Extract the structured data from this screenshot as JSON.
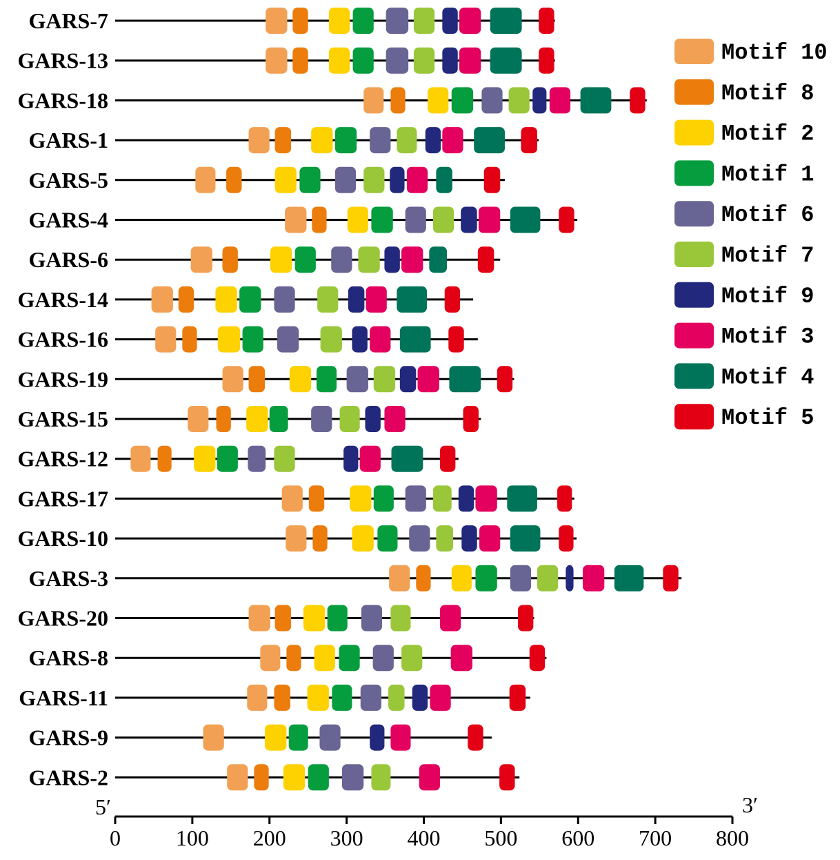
{
  "chart_data": {
    "type": "motif-diagram",
    "xlabel_left": "5′",
    "xlabel_right": "3′",
    "xlim": [
      0,
      800
    ],
    "xticks": [
      0,
      100,
      200,
      300,
      400,
      500,
      600,
      700,
      800
    ],
    "xtick_labels": [
      "0",
      "100",
      "200",
      "300",
      "400",
      "500",
      "600",
      "700",
      "800"
    ],
    "legend_position": "top-right",
    "legend": [
      {
        "motif": "M10",
        "label": "Motif 10",
        "color": "#F2A154"
      },
      {
        "motif": "M8",
        "label": "Motif 8",
        "color": "#EC7C0C"
      },
      {
        "motif": "M2",
        "label": "Motif 2",
        "color": "#FDD200"
      },
      {
        "motif": "M1",
        "label": "Motif 1",
        "color": "#069D3E"
      },
      {
        "motif": "M6",
        "label": "Motif 6",
        "color": "#686594"
      },
      {
        "motif": "M7",
        "label": "Motif 7",
        "color": "#9AC73A"
      },
      {
        "motif": "M9",
        "label": "Motif 9",
        "color": "#22287B"
      },
      {
        "motif": "M3",
        "label": "Motif 3",
        "color": "#E3005F"
      },
      {
        "motif": "M4",
        "label": "Motif 4",
        "color": "#007458"
      },
      {
        "motif": "M5",
        "label": "Motif 5",
        "color": "#E30015"
      }
    ],
    "sequences": [
      {
        "name": "GARS-7",
        "length": 570,
        "motifs": [
          [
            "M10",
            195,
            223
          ],
          [
            "M8",
            230,
            250
          ],
          [
            "M2",
            277,
            304
          ],
          [
            "M1",
            308,
            335
          ],
          [
            "M6",
            351,
            380
          ],
          [
            "M7",
            387,
            414
          ],
          [
            "M9",
            424,
            444
          ],
          [
            "M3",
            446,
            474
          ],
          [
            "M4",
            486,
            527
          ],
          [
            "M5",
            549,
            569
          ]
        ]
      },
      {
        "name": "GARS-13",
        "length": 570,
        "motifs": [
          [
            "M10",
            195,
            223
          ],
          [
            "M8",
            230,
            250
          ],
          [
            "M2",
            277,
            304
          ],
          [
            "M1",
            308,
            335
          ],
          [
            "M6",
            351,
            380
          ],
          [
            "M7",
            387,
            414
          ],
          [
            "M9",
            424,
            444
          ],
          [
            "M3",
            446,
            474
          ],
          [
            "M4",
            486,
            527
          ],
          [
            "M5",
            549,
            569
          ]
        ]
      },
      {
        "name": "GARS-18",
        "length": 689,
        "motifs": [
          [
            "M10",
            322,
            348
          ],
          [
            "M8",
            357,
            376
          ],
          [
            "M2",
            405,
            432
          ],
          [
            "M1",
            436,
            464
          ],
          [
            "M6",
            475,
            502
          ],
          [
            "M7",
            510,
            537
          ],
          [
            "M9",
            541,
            559
          ],
          [
            "M3",
            563,
            590
          ],
          [
            "M4",
            603,
            643
          ],
          [
            "M5",
            667,
            687
          ]
        ]
      },
      {
        "name": "GARS-1",
        "length": 549,
        "motifs": [
          [
            "M10",
            173,
            200
          ],
          [
            "M8",
            207,
            228
          ],
          [
            "M2",
            254,
            282
          ],
          [
            "M1",
            285,
            313
          ],
          [
            "M6",
            330,
            357
          ],
          [
            "M7",
            365,
            391
          ],
          [
            "M9",
            402,
            422
          ],
          [
            "M3",
            424,
            451
          ],
          [
            "M4",
            465,
            505
          ],
          [
            "M5",
            526,
            547
          ]
        ]
      },
      {
        "name": "GARS-5",
        "length": 505,
        "motifs": [
          [
            "M10",
            104,
            130
          ],
          [
            "M8",
            144,
            164
          ],
          [
            "M2",
            207,
            235
          ],
          [
            "M1",
            239,
            266
          ],
          [
            "M6",
            285,
            312
          ],
          [
            "M7",
            322,
            349
          ],
          [
            "M9",
            356,
            375
          ],
          [
            "M3",
            378,
            405
          ],
          [
            "M4",
            416,
            437
          ],
          [
            "M5",
            478,
            499
          ]
        ]
      },
      {
        "name": "GARS-4",
        "length": 599,
        "motifs": [
          [
            "M10",
            220,
            248
          ],
          [
            "M8",
            255,
            274
          ],
          [
            "M2",
            301,
            328
          ],
          [
            "M1",
            332,
            360
          ],
          [
            "M6",
            376,
            403
          ],
          [
            "M7",
            412,
            439
          ],
          [
            "M9",
            448,
            469
          ],
          [
            "M3",
            471,
            499
          ],
          [
            "M4",
            512,
            551
          ],
          [
            "M5",
            575,
            595
          ]
        ]
      },
      {
        "name": "GARS-6",
        "length": 499,
        "motifs": [
          [
            "M10",
            98,
            126
          ],
          [
            "M8",
            139,
            159
          ],
          [
            "M2",
            201,
            229
          ],
          [
            "M1",
            233,
            260
          ],
          [
            "M6",
            280,
            307
          ],
          [
            "M7",
            315,
            343
          ],
          [
            "M9",
            349,
            369
          ],
          [
            "M3",
            371,
            399
          ],
          [
            "M4",
            407,
            430
          ],
          [
            "M5",
            470,
            491
          ]
        ]
      },
      {
        "name": "GARS-14",
        "length": 464,
        "motifs": [
          [
            "M10",
            47,
            75
          ],
          [
            "M8",
            82,
            102
          ],
          [
            "M2",
            130,
            158
          ],
          [
            "M1",
            161,
            189
          ],
          [
            "M6",
            206,
            233
          ],
          [
            "M7",
            262,
            289
          ],
          [
            "M9",
            302,
            323
          ],
          [
            "M3",
            325,
            352
          ],
          [
            "M4",
            365,
            404
          ],
          [
            "M5",
            427,
            447
          ]
        ]
      },
      {
        "name": "GARS-16",
        "length": 470,
        "motifs": [
          [
            "M10",
            52,
            79
          ],
          [
            "M8",
            87,
            106
          ],
          [
            "M2",
            133,
            162
          ],
          [
            "M1",
            165,
            192
          ],
          [
            "M6",
            210,
            238
          ],
          [
            "M7",
            266,
            294
          ],
          [
            "M9",
            307,
            327
          ],
          [
            "M3",
            330,
            357
          ],
          [
            "M4",
            369,
            409
          ],
          [
            "M5",
            432,
            452
          ]
        ]
      },
      {
        "name": "GARS-19",
        "length": 517,
        "motifs": [
          [
            "M10",
            139,
            166
          ],
          [
            "M8",
            173,
            194
          ],
          [
            "M2",
            226,
            254
          ],
          [
            "M1",
            261,
            287
          ],
          [
            "M6",
            300,
            328
          ],
          [
            "M7",
            335,
            363
          ],
          [
            "M9",
            369,
            390
          ],
          [
            "M3",
            392,
            420
          ],
          [
            "M4",
            433,
            474
          ],
          [
            "M5",
            495,
            515
          ]
        ]
      },
      {
        "name": "GARS-15",
        "length": 474,
        "motifs": [
          [
            "M10",
            94,
            121
          ],
          [
            "M8",
            131,
            150
          ],
          [
            "M2",
            170,
            198
          ],
          [
            "M1",
            200,
            224
          ],
          [
            "M6",
            254,
            281
          ],
          [
            "M7",
            291,
            317
          ],
          [
            "M9",
            324,
            344
          ],
          [
            "M3",
            349,
            376
          ],
          [
            "M5",
            451,
            471
          ]
        ]
      },
      {
        "name": "GARS-12",
        "length": 445,
        "motifs": [
          [
            "M10",
            20,
            46
          ],
          [
            "M8",
            55,
            73
          ],
          [
            "M2",
            102,
            130
          ],
          [
            "M1",
            132,
            159
          ],
          [
            "M6",
            172,
            195
          ],
          [
            "M7",
            206,
            233
          ],
          [
            "M9",
            296,
            315
          ],
          [
            "M3",
            317,
            344
          ],
          [
            "M4",
            358,
            399
          ],
          [
            "M5",
            421,
            441
          ]
        ]
      },
      {
        "name": "GARS-17",
        "length": 595,
        "motifs": [
          [
            "M10",
            216,
            243
          ],
          [
            "M8",
            251,
            271
          ],
          [
            "M2",
            304,
            332
          ],
          [
            "M1",
            335,
            361
          ],
          [
            "M6",
            376,
            403
          ],
          [
            "M7",
            412,
            436
          ],
          [
            "M9",
            445,
            465
          ],
          [
            "M3",
            467,
            495
          ],
          [
            "M4",
            508,
            547
          ],
          [
            "M5",
            573,
            592
          ]
        ]
      },
      {
        "name": "GARS-10",
        "length": 598,
        "motifs": [
          [
            "M10",
            221,
            248
          ],
          [
            "M8",
            256,
            275
          ],
          [
            "M2",
            307,
            335
          ],
          [
            "M1",
            340,
            366
          ],
          [
            "M6",
            381,
            408
          ],
          [
            "M7",
            416,
            438
          ],
          [
            "M9",
            449,
            469
          ],
          [
            "M3",
            472,
            499
          ],
          [
            "M4",
            512,
            551
          ],
          [
            "M5",
            575,
            594
          ]
        ]
      },
      {
        "name": "GARS-3",
        "length": 734,
        "motifs": [
          [
            "M10",
            355,
            382
          ],
          [
            "M8",
            390,
            409
          ],
          [
            "M2",
            436,
            462
          ],
          [
            "M1",
            467,
            495
          ],
          [
            "M6",
            512,
            539
          ],
          [
            "M7",
            547,
            574
          ],
          [
            "M9",
            584,
            594
          ],
          [
            "M3",
            606,
            634
          ],
          [
            "M4",
            647,
            685
          ],
          [
            "M5",
            710,
            730
          ]
        ]
      },
      {
        "name": "GARS-20",
        "length": 543,
        "motifs": [
          [
            "M10",
            173,
            201
          ],
          [
            "M8",
            207,
            228
          ],
          [
            "M2",
            244,
            272
          ],
          [
            "M1",
            275,
            301
          ],
          [
            "M6",
            319,
            346
          ],
          [
            "M7",
            357,
            383
          ],
          [
            "M3",
            421,
            448
          ],
          [
            "M5",
            522,
            542
          ]
        ]
      },
      {
        "name": "GARS-8",
        "length": 559,
        "motifs": [
          [
            "M10",
            188,
            214
          ],
          [
            "M8",
            222,
            241
          ],
          [
            "M2",
            258,
            285
          ],
          [
            "M1",
            290,
            317
          ],
          [
            "M6",
            334,
            361
          ],
          [
            "M7",
            371,
            398
          ],
          [
            "M3",
            435,
            463
          ],
          [
            "M5",
            537,
            557
          ]
        ]
      },
      {
        "name": "GARS-11",
        "length": 538,
        "motifs": [
          [
            "M10",
            171,
            197
          ],
          [
            "M8",
            206,
            227
          ],
          [
            "M2",
            249,
            277
          ],
          [
            "M1",
            281,
            307
          ],
          [
            "M6",
            318,
            345
          ],
          [
            "M7",
            354,
            375
          ],
          [
            "M9",
            385,
            405
          ],
          [
            "M3",
            408,
            435
          ],
          [
            "M5",
            511,
            532
          ]
        ]
      },
      {
        "name": "GARS-9",
        "length": 488,
        "motifs": [
          [
            "M10",
            114,
            141
          ],
          [
            "M2",
            194,
            222
          ],
          [
            "M1",
            225,
            250
          ],
          [
            "M6",
            265,
            292
          ],
          [
            "M9",
            330,
            349
          ],
          [
            "M3",
            357,
            383
          ],
          [
            "M5",
            457,
            477
          ]
        ]
      },
      {
        "name": "GARS-2",
        "length": 524,
        "motifs": [
          [
            "M10",
            145,
            172
          ],
          [
            "M8",
            180,
            199
          ],
          [
            "M2",
            218,
            246
          ],
          [
            "M1",
            250,
            277
          ],
          [
            "M6",
            294,
            322
          ],
          [
            "M7",
            332,
            357
          ],
          [
            "M3",
            394,
            421
          ],
          [
            "M5",
            498,
            518
          ]
        ]
      }
    ]
  }
}
